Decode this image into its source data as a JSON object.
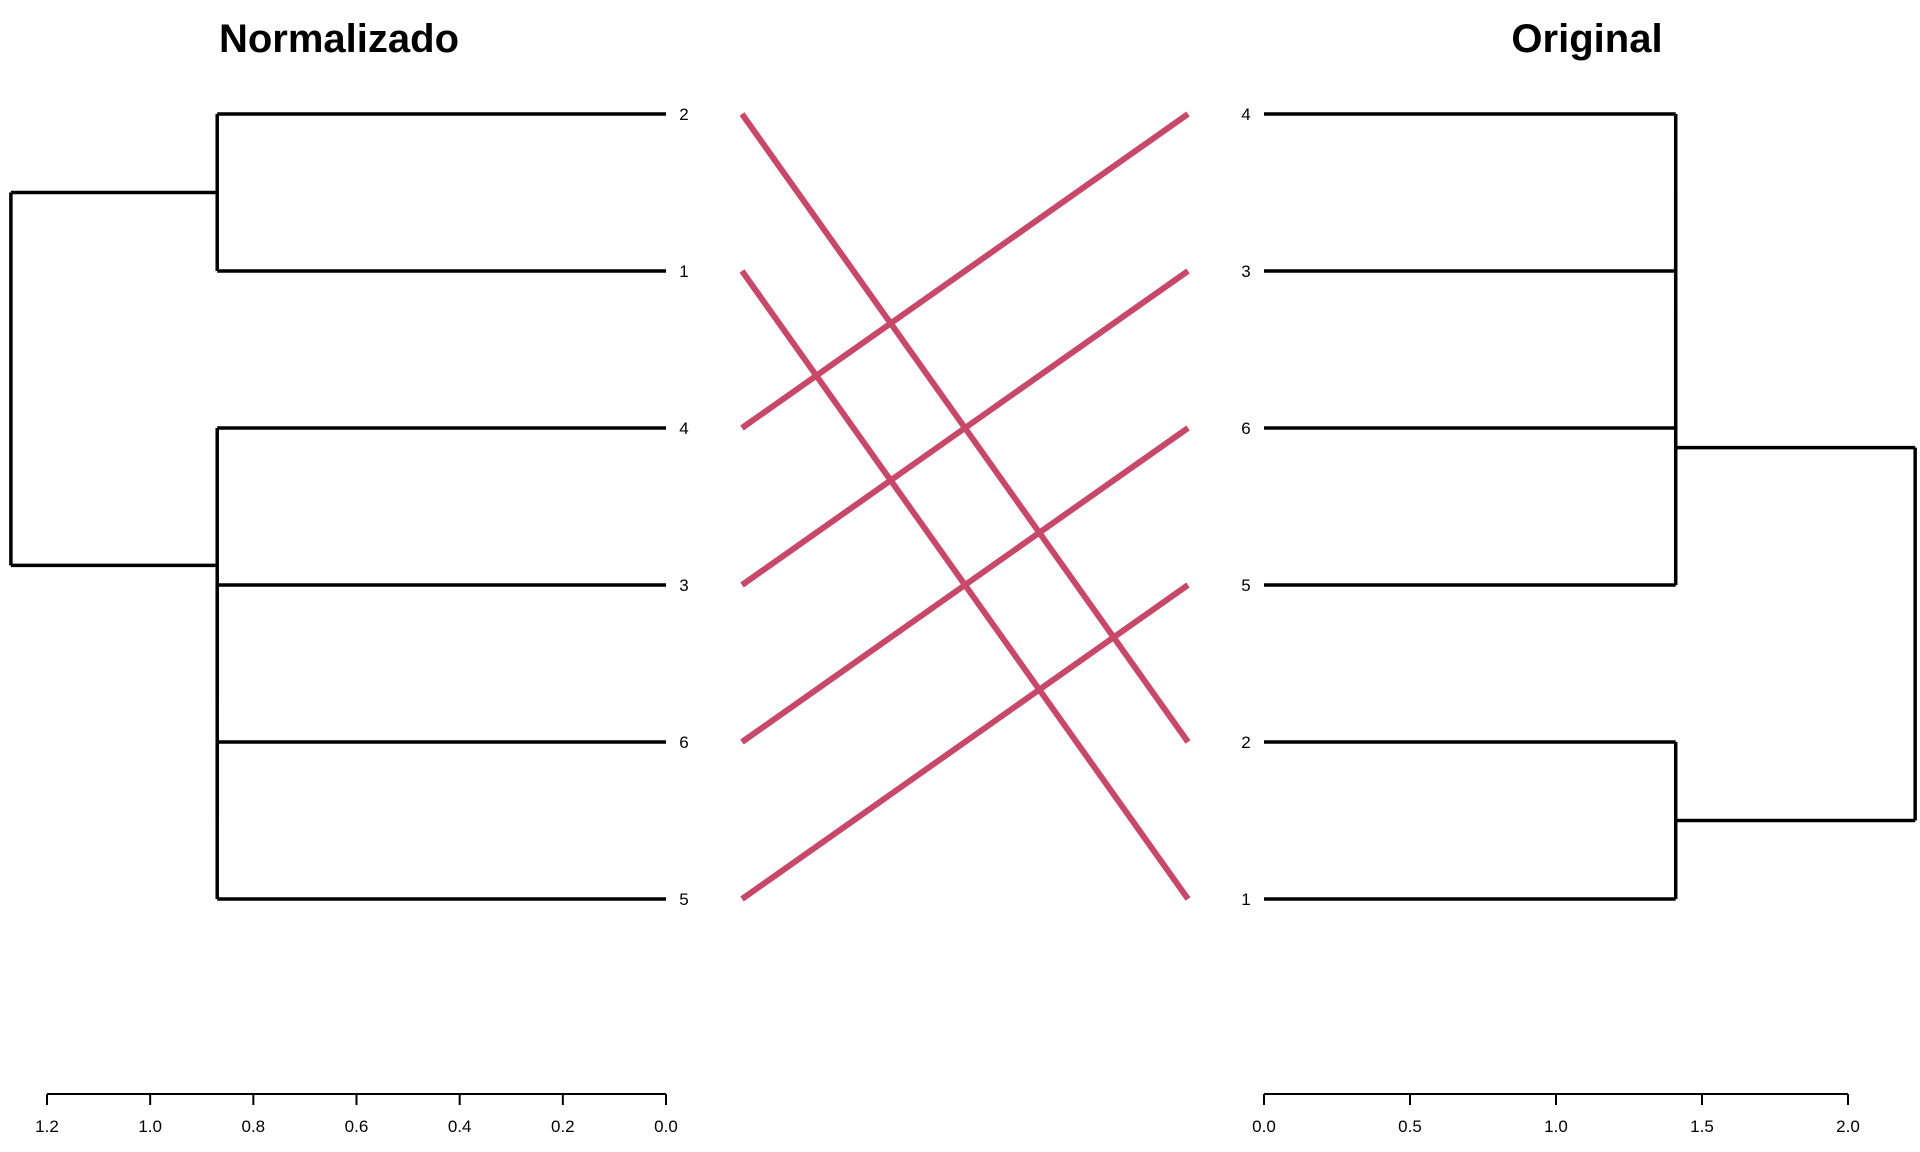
{
  "chart_data": {
    "type": "tanglegram",
    "connector_color": "#C8486A",
    "left": {
      "title": "Normalizado",
      "leaf_order": [
        "2",
        "1",
        "4",
        "3",
        "6",
        "5"
      ],
      "merges": [
        {
          "left": "2",
          "right": "1",
          "height": 0.87
        },
        {
          "left": "6",
          "right": "5",
          "height": 0.87
        },
        {
          "left": "3",
          "right": "6,5",
          "height": 0.87
        },
        {
          "left": "4",
          "right": "3,6,5",
          "height": 0.87
        },
        {
          "left": "2,1",
          "right": "4,3,6,5",
          "height": 1.27
        }
      ],
      "axis": {
        "ticks": [
          1.2,
          1.0,
          0.8,
          0.6,
          0.4,
          0.2,
          0.0
        ],
        "tick_labels": [
          "1.2",
          "1.0",
          "0.8",
          "0.6",
          "0.4",
          "0.2",
          "0.0"
        ],
        "range": [
          1.29,
          0.0
        ]
      }
    },
    "right": {
      "title": "Original",
      "leaf_order": [
        "4",
        "3",
        "6",
        "5",
        "2",
        "1"
      ],
      "merges": [
        {
          "left": "4",
          "right": "3",
          "height": 1.41
        },
        {
          "left": "4,3",
          "right": "6",
          "height": 1.41
        },
        {
          "left": "4,3,6",
          "right": "5",
          "height": 1.41
        },
        {
          "left": "2",
          "right": "1",
          "height": 1.41
        },
        {
          "left": "4,3,6,5",
          "right": "2,1",
          "height": 2.23
        }
      ],
      "axis": {
        "ticks": [
          0.0,
          0.5,
          1.0,
          1.5,
          2.0
        ],
        "tick_labels": [
          "0.0",
          "0.5",
          "1.0",
          "1.5",
          "2.0"
        ],
        "range": [
          0.0,
          2.23
        ]
      }
    },
    "connections": [
      [
        "2",
        "2"
      ],
      [
        "1",
        "1"
      ],
      [
        "4",
        "4"
      ],
      [
        "3",
        "3"
      ],
      [
        "6",
        "6"
      ],
      [
        "5",
        "5"
      ]
    ]
  }
}
